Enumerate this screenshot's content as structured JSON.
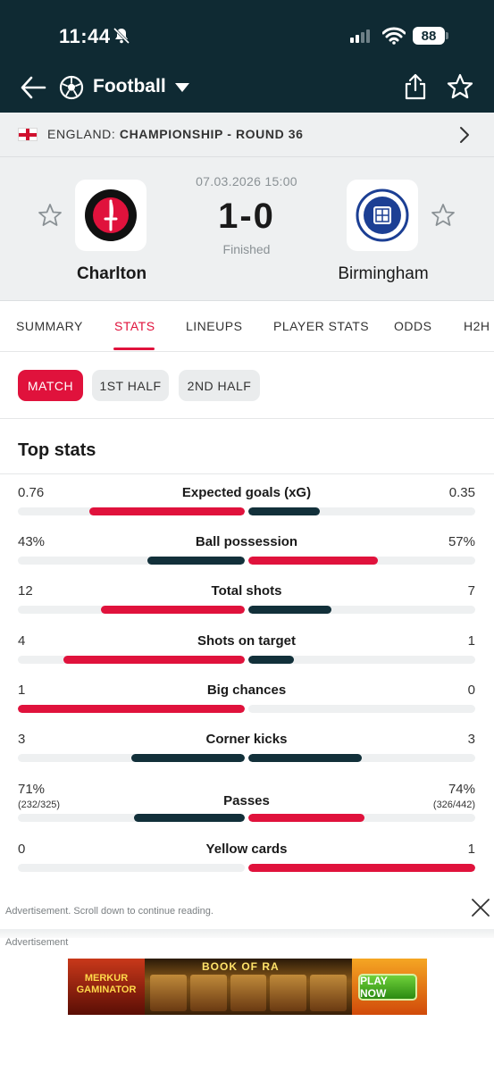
{
  "status_bar": {
    "time": "11:44",
    "battery": "88"
  },
  "appbar": {
    "sport": "Football"
  },
  "league": {
    "country": "ENGLAND:",
    "competition": "CHAMPIONSHIP - ROUND 36"
  },
  "match": {
    "datetime": "07.03.2026 15:00",
    "score": "1-0",
    "status": "Finished",
    "home": {
      "name": "Charlton"
    },
    "away": {
      "name": "Birmingham"
    }
  },
  "tabs": [
    "SUMMARY",
    "STATS",
    "LINEUPS",
    "PLAYER STATS",
    "ODDS",
    "H2H"
  ],
  "periods": [
    "MATCH",
    "1ST HALF",
    "2ND HALF"
  ],
  "section_title": "Top stats",
  "stats": [
    {
      "name": "Expected goals (xG)",
      "home": "0.76",
      "away": "0.35",
      "home_share": 0.685,
      "away_share": 0.315,
      "leader": "home"
    },
    {
      "name": "Ball possession",
      "home": "43%",
      "away": "57%",
      "home_share": 0.43,
      "away_share": 0.57,
      "leader": "away"
    },
    {
      "name": "Total shots",
      "home": "12",
      "away": "7",
      "home_share": 0.632,
      "away_share": 0.368,
      "leader": "home"
    },
    {
      "name": "Shots on target",
      "home": "4",
      "away": "1",
      "home_share": 0.8,
      "away_share": 0.2,
      "leader": "home"
    },
    {
      "name": "Big chances",
      "home": "1",
      "away": "0",
      "home_share": 1.0,
      "away_share": 0.0,
      "leader": "home"
    },
    {
      "name": "Corner kicks",
      "home": "3",
      "away": "3",
      "home_share": 0.5,
      "away_share": 0.5,
      "leader": "none"
    },
    {
      "name": "Passes",
      "home": "71%",
      "home_sub": "(232/325)",
      "away": "74%",
      "away_sub": "(326/442)",
      "home_share": 0.49,
      "away_share": 0.51,
      "leader": "away"
    },
    {
      "name": "Yellow cards",
      "home": "0",
      "away": "1",
      "home_share": 0.0,
      "away_share": 1.0,
      "leader": "away"
    }
  ],
  "ad": {
    "note": "Advertisement. Scroll down to continue reading.",
    "label": "Advertisement",
    "brand": "MERKUR GAMINATOR",
    "game": "BOOK OF RA",
    "cta": "PLAY NOW"
  },
  "colors": {
    "dark": "#0f2a33",
    "accent": "#e0123c",
    "bar_dark": "#12303a"
  }
}
